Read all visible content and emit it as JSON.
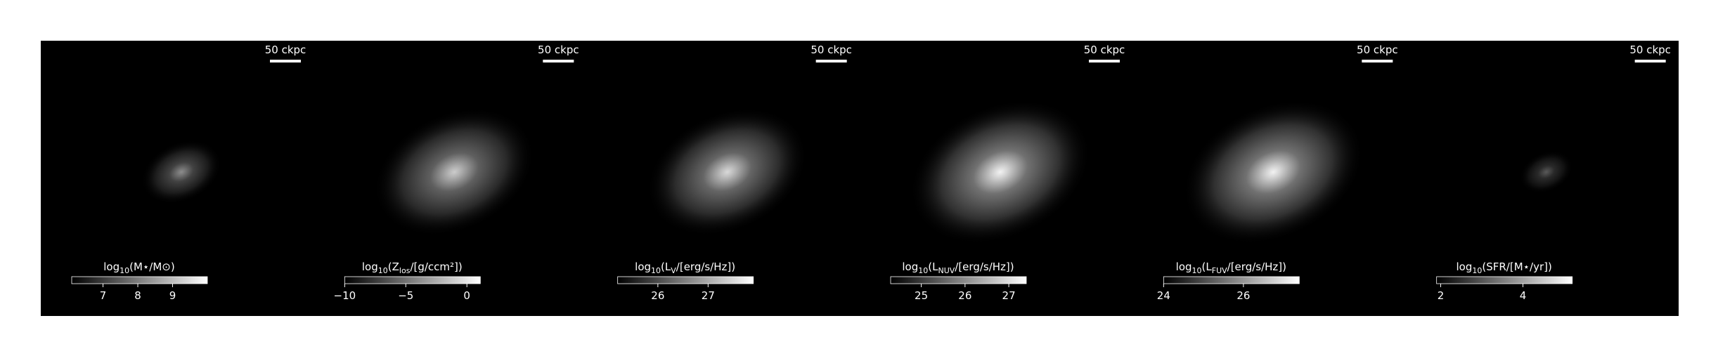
{
  "chart_data": [
    {
      "type": "image",
      "scalebar_label": "50 ckpc",
      "colorbar_label": [
        "log",
        "10",
        "(M⋆/M⊙)"
      ],
      "clim": [
        6.1,
        10.0
      ],
      "cticks": [
        7,
        8,
        9
      ]
    },
    {
      "type": "image",
      "scalebar_label": "50 ckpc",
      "colorbar_label": [
        "log",
        "10",
        "(Z",
        "los",
        "/[g/ccm²])"
      ],
      "clim": [
        -10,
        1.1
      ],
      "cticks": [
        {
          "value": -10,
          "label": "−10"
        },
        {
          "value": -5,
          "label": "−5"
        },
        0
      ]
    },
    {
      "type": "image",
      "scalebar_label": "50 ckpc",
      "colorbar_label": [
        "log",
        "10",
        "(L",
        "V",
        "/[erg/s/Hz])"
      ],
      "clim": [
        25.2,
        27.9
      ],
      "cticks": [
        26,
        27
      ]
    },
    {
      "type": "image",
      "scalebar_label": "50 ckpc",
      "colorbar_label": [
        "log",
        "10",
        "(L",
        "NUV",
        "/[erg/s/Hz])"
      ],
      "clim": [
        24.3,
        27.4
      ],
      "cticks": [
        25,
        26,
        27
      ]
    },
    {
      "type": "image",
      "scalebar_label": "50 ckpc",
      "colorbar_label": [
        "log",
        "10",
        "(L",
        "FUV",
        "/[erg/s/Hz])"
      ],
      "clim": [
        24,
        27.4
      ],
      "cticks": [
        24,
        26
      ]
    },
    {
      "type": "image",
      "scalebar_label": "50 ckpc",
      "colorbar_label": [
        "log",
        "10",
        "(SFR/[M⋆/yr])"
      ],
      "clim": [
        1.9,
        5.2
      ],
      "cticks": [
        2,
        4
      ]
    }
  ]
}
